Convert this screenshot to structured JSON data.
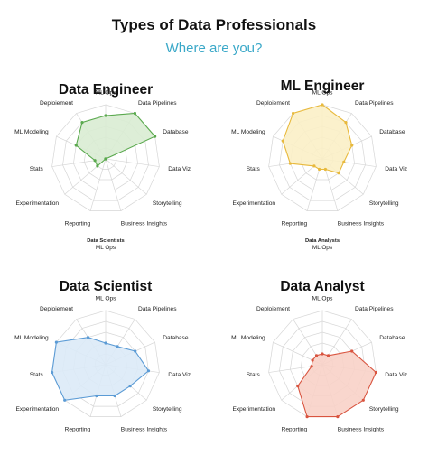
{
  "title": "Types of Data Professionals",
  "subtitle": "Where are you?",
  "accent_color": "#3aa8c8",
  "chart_data": [
    {
      "type": "radar",
      "title": "Data Engineer",
      "axes": [
        "ML Ops",
        "Data Pipelines",
        "Database",
        "Data Viz",
        "Storytelling",
        "Business Insights",
        "Reporting",
        "Experimentation",
        "Stats",
        "ML Modeling",
        "Deploiement"
      ],
      "rmax": 5,
      "values": [
        4,
        5,
        5,
        0,
        0,
        0,
        0,
        1,
        1,
        3,
        4
      ],
      "fill": "#d9ecd3",
      "stroke": "#5aa94e",
      "footnote": [
        "Data Scientists",
        "ML Ops"
      ]
    },
    {
      "type": "radar",
      "title": "ML Engineer",
      "axes": [
        "ML Ops",
        "Data Pipelines",
        "Database",
        "Data Viz",
        "Storytelling",
        "Business Insights",
        "Reporting",
        "Experimentation",
        "Stats",
        "ML Modeling",
        "Deploiement"
      ],
      "rmax": 5,
      "values": [
        5,
        4,
        3,
        2,
        2,
        1,
        1,
        1,
        3,
        4,
        5
      ],
      "fill": "#fbf0c7",
      "stroke": "#e8b93c",
      "footnote": [
        "Data Analysts",
        "ML Ops"
      ]
    },
    {
      "type": "radar",
      "title": "Data Scientist",
      "axes": [
        "ML Ops",
        "Data Pipelines",
        "Database",
        "Data Viz",
        "Storytelling",
        "Business Insights",
        "Reporting",
        "Experimentation",
        "Stats",
        "ML Modeling",
        "Deploiement"
      ],
      "rmax": 5,
      "values": [
        2,
        2,
        3,
        4,
        3,
        3,
        3,
        5,
        5,
        5,
        3
      ],
      "fill": "#dbeaf7",
      "stroke": "#5b9bd5"
    },
    {
      "type": "radar",
      "title": "Data Analyst",
      "axes": [
        "ML Ops",
        "Data Pipelines",
        "Database",
        "Data Viz",
        "Storytelling",
        "Business Insights",
        "Reporting",
        "Experimentation",
        "Stats",
        "ML Modeling",
        "Deploiement"
      ],
      "rmax": 5,
      "values": [
        1,
        1,
        3,
        5,
        5,
        5,
        5,
        3,
        1,
        1,
        1
      ],
      "fill": "#f8d2c8",
      "stroke": "#d9543f"
    }
  ]
}
